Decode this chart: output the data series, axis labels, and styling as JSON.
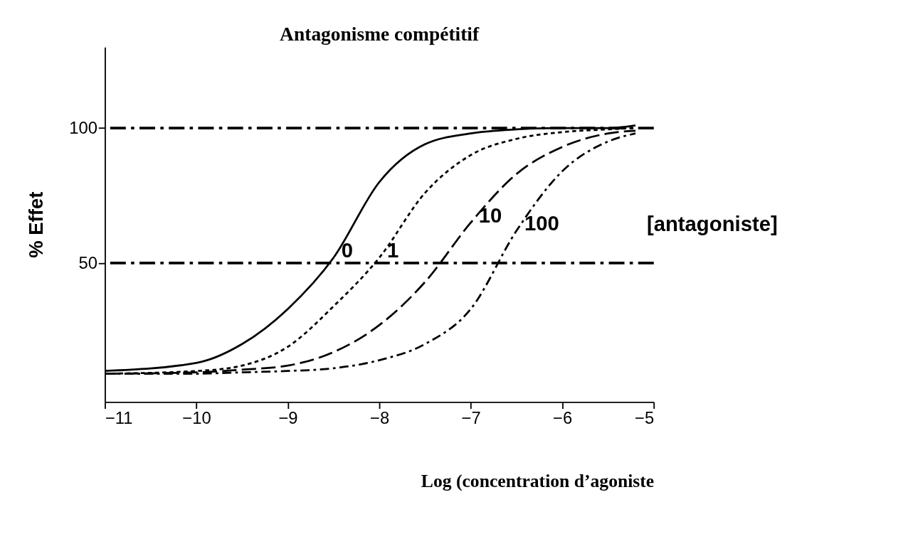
{
  "chart_data": {
    "type": "line",
    "title": "Antagonisme compétitif",
    "xlabel": "Log (concentration d’agoniste",
    "ylabel": "% Effet",
    "x": [
      -11,
      -10,
      -9.5,
      -9,
      -8.5,
      -8,
      -7.5,
      -7,
      -6.5,
      -6,
      -5.5,
      -5.2
    ],
    "series": [
      {
        "name": "0",
        "color": "#000000",
        "line_style": "solid",
        "values": [
          10,
          13,
          20,
          33,
          52,
          80,
          94,
          98,
          99.5,
          100,
          100,
          101
        ]
      },
      {
        "name": "1",
        "color": "#000000",
        "line_style": "dotted",
        "values": [
          9,
          10,
          12,
          19,
          34,
          52,
          76,
          90,
          96,
          98.5,
          99.5,
          100
        ]
      },
      {
        "name": "10",
        "color": "#000000",
        "line_style": "dashed",
        "values": [
          9,
          9.5,
          10.5,
          12,
          17,
          27,
          43,
          65,
          83,
          93,
          98,
          99
        ]
      },
      {
        "name": "100",
        "color": "#000000",
        "line_style": "dashed",
        "values": [
          9,
          9,
          9.5,
          10,
          11,
          14,
          20,
          33,
          62,
          84,
          95,
          98
        ]
      }
    ],
    "xlim": [
      -11,
      -5
    ],
    "xticks": [
      -11,
      -10,
      -9,
      -8,
      -7,
      -6,
      -5
    ],
    "ylim": [
      -1.5,
      130
    ],
    "yticks": [
      50,
      100
    ],
    "grid": false,
    "marker": "none",
    "ref_lines": [
      {
        "axis": "y",
        "value": 100,
        "label": null,
        "color": "#000000"
      },
      {
        "axis": "y",
        "value": 50,
        "label": null,
        "color": "#000000"
      }
    ],
    "annotations": [
      "[antagoniste]"
    ]
  }
}
